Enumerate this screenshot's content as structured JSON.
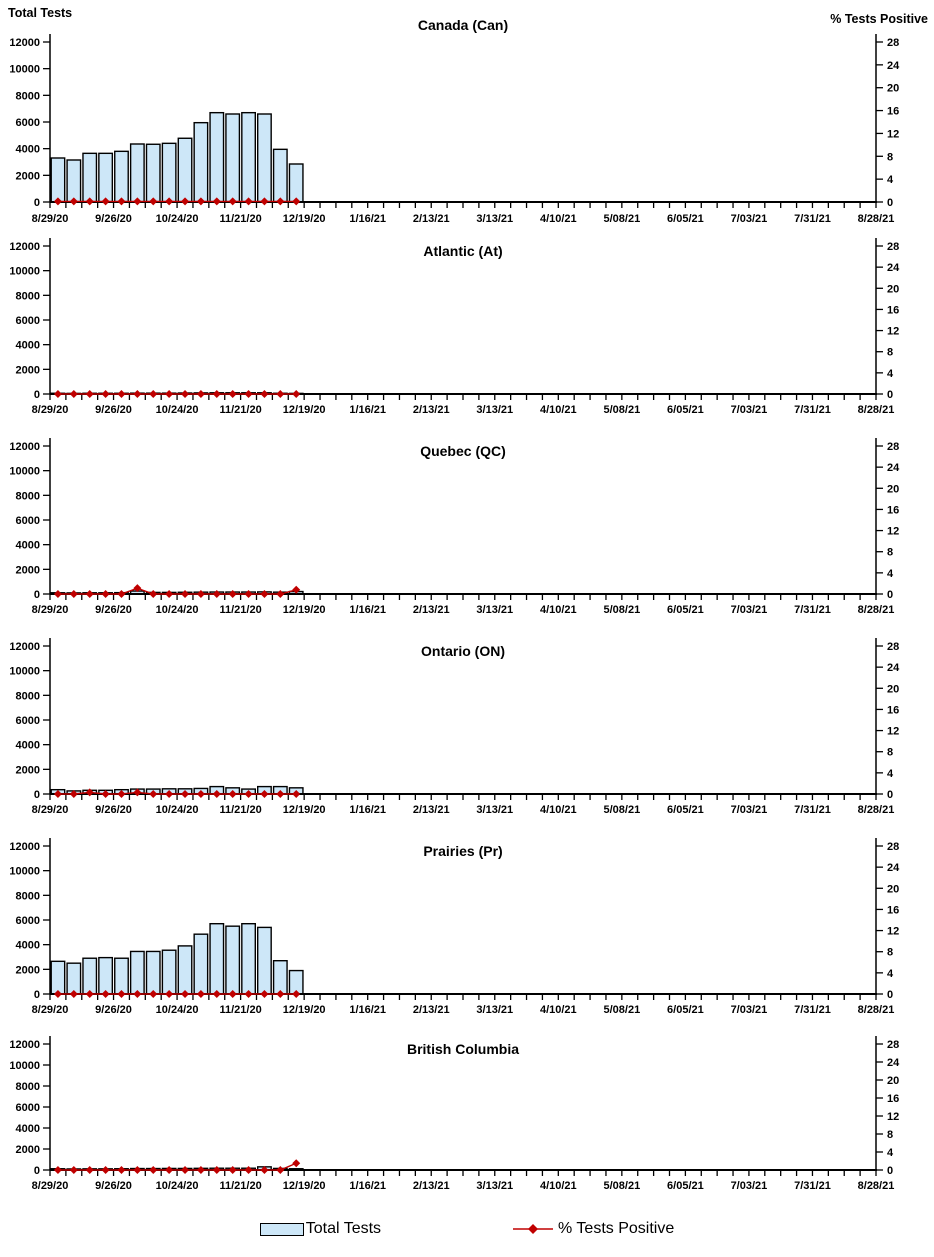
{
  "headers": {
    "left": "Total Tests",
    "right": "% Tests Positive"
  },
  "legend": {
    "bars_label": "Total Tests",
    "line_label": "% Tests Positive"
  },
  "colors": {
    "bar_fill": "#CDE7F8",
    "bar_border": "#000000",
    "line_color": "#C00000",
    "axis_color": "#000000",
    "text_color": "#000000"
  },
  "chart_data": {
    "type": "bar",
    "subtype": "small-multiples weekly bars with % positive line, dual y-axis",
    "x": [
      "8/29/20",
      "9/5/20",
      "9/12/20",
      "9/19/20",
      "9/26/20",
      "10/3/20",
      "10/10/20",
      "10/17/20",
      "10/24/20",
      "10/31/20",
      "11/7/20",
      "11/14/20",
      "11/21/20",
      "11/28/20",
      "12/5/20",
      "12/12/20"
    ],
    "x_axis_tick_labels": [
      "8/29/20",
      "9/26/20",
      "10/24/20",
      "11/21/20",
      "12/19/20",
      "1/16/21",
      "2/13/21",
      "3/13/21",
      "4/10/21",
      "5/08/21",
      "6/05/21",
      "7/03/21",
      "7/31/21",
      "8/28/21"
    ],
    "x_axis_total_weeks": 52,
    "left_axis": {
      "label": "Total Tests",
      "min": 0,
      "max": 12000,
      "step": 2000
    },
    "right_axis": {
      "label": "% Tests Positive",
      "min": 0,
      "max": 28,
      "step": 4
    },
    "grid": false,
    "legend_position": "bottom-center",
    "panels": [
      {
        "title": "Canada (Can)",
        "series": [
          {
            "name": "Total Tests",
            "axis": "left",
            "type": "bar",
            "values": [
              3300,
              3150,
              3650,
              3650,
              3800,
              4350,
              4330,
              4400,
              4780,
              5950,
              6700,
              6600,
              6700,
              6600,
              3950,
              2850
            ]
          },
          {
            "name": "% Tests Positive",
            "axis": "right",
            "type": "line",
            "values": [
              0.1,
              0.1,
              0.1,
              0.1,
              0.1,
              0.1,
              0.1,
              0.1,
              0.1,
              0.1,
              0.1,
              0.1,
              0.1,
              0.1,
              0.1,
              0.1
            ]
          }
        ]
      },
      {
        "title": "Atlantic (At)",
        "series": [
          {
            "name": "Total Tests",
            "axis": "left",
            "type": "bar",
            "values": [
              60,
              50,
              60,
              60,
              60,
              70,
              70,
              70,
              80,
              90,
              100,
              100,
              100,
              100,
              60,
              50
            ]
          },
          {
            "name": "% Tests Positive",
            "axis": "right",
            "type": "line",
            "values": [
              0,
              0,
              0,
              0,
              0,
              0,
              0,
              0,
              0,
              0,
              0,
              0,
              0,
              0,
              0,
              0
            ]
          }
        ]
      },
      {
        "title": "Quebec (QC)",
        "series": [
          {
            "name": "Total Tests",
            "axis": "left",
            "type": "bar",
            "values": [
              100,
              90,
              100,
              100,
              110,
              240,
              130,
              130,
              140,
              150,
              160,
              160,
              160,
              170,
              150,
              200
            ]
          },
          {
            "name": "% Tests Positive",
            "axis": "right",
            "type": "line",
            "values": [
              0,
              0,
              0,
              0,
              0,
              1.1,
              0,
              0,
              0,
              0,
              0,
              0,
              0,
              0,
              0,
              0.8
            ]
          }
        ]
      },
      {
        "title": "Ontario (ON)",
        "series": [
          {
            "name": "Total Tests",
            "axis": "left",
            "type": "bar",
            "values": [
              350,
              250,
              300,
              300,
              350,
              400,
              400,
              420,
              420,
              450,
              600,
              500,
              400,
              600,
              600,
              500
            ]
          },
          {
            "name": "% Tests Positive",
            "axis": "right",
            "type": "line",
            "values": [
              0,
              0,
              0.3,
              0,
              0,
              0.3,
              0,
              0,
              0,
              0,
              0,
              0,
              0,
              0,
              0,
              0
            ]
          }
        ]
      },
      {
        "title": "Prairies (Pr)",
        "series": [
          {
            "name": "Total Tests",
            "axis": "left",
            "type": "bar",
            "values": [
              2650,
              2500,
              2900,
              2950,
              2900,
              3450,
              3450,
              3550,
              3900,
              4850,
              5700,
              5500,
              5700,
              5400,
              2700,
              1900
            ]
          },
          {
            "name": "% Tests Positive",
            "axis": "right",
            "type": "line",
            "values": [
              0,
              0,
              0,
              0,
              0,
              0,
              0,
              0,
              0,
              0,
              0,
              0,
              0,
              0,
              0,
              0
            ]
          }
        ]
      },
      {
        "title": "British Columbia",
        "series": [
          {
            "name": "Total Tests",
            "axis": "left",
            "type": "bar",
            "values": [
              120,
              100,
              110,
              110,
              120,
              140,
              140,
              150,
              150,
              160,
              170,
              170,
              170,
              300,
              150,
              120
            ]
          },
          {
            "name": "% Tests Positive",
            "axis": "right",
            "type": "line",
            "values": [
              0,
              0,
              0,
              0,
              0,
              0,
              0,
              0,
              0,
              0,
              0,
              0,
              0,
              0,
              0,
              1.5
            ]
          }
        ]
      }
    ]
  }
}
